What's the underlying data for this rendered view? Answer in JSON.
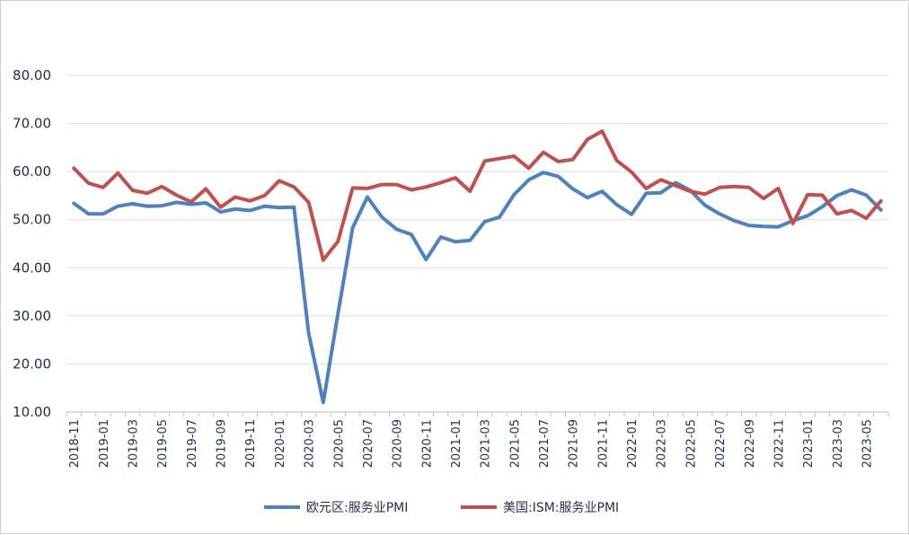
{
  "chart_data": {
    "type": "line",
    "ylim": [
      10,
      80
    ],
    "yticks": [
      "10.00",
      "20.00",
      "30.00",
      "40.00",
      "50.00",
      "60.00",
      "70.00",
      "80.00"
    ],
    "grid": true,
    "legend_position": "bottom",
    "x": [
      "2018-11",
      "2018-12",
      "2019-01",
      "2019-02",
      "2019-03",
      "2019-04",
      "2019-05",
      "2019-06",
      "2019-07",
      "2019-08",
      "2019-09",
      "2019-10",
      "2019-11",
      "2019-12",
      "2020-01",
      "2020-02",
      "2020-03",
      "2020-04",
      "2020-05",
      "2020-06",
      "2020-07",
      "2020-08",
      "2020-09",
      "2020-10",
      "2020-11",
      "2020-12",
      "2021-01",
      "2021-02",
      "2021-03",
      "2021-04",
      "2021-05",
      "2021-06",
      "2021-07",
      "2021-08",
      "2021-09",
      "2021-10",
      "2021-11",
      "2021-12",
      "2022-01",
      "2022-02",
      "2022-03",
      "2022-04",
      "2022-05",
      "2022-06",
      "2022-07",
      "2022-08",
      "2022-09",
      "2022-10",
      "2022-11",
      "2022-12",
      "2023-01",
      "2023-02",
      "2023-03",
      "2023-04",
      "2023-05",
      "2023-06"
    ],
    "xtick_labels": [
      "2018-11",
      "2019-01",
      "2019-03",
      "2019-05",
      "2019-07",
      "2019-09",
      "2019-11",
      "2020-01",
      "2020-03",
      "2020-05",
      "2020-07",
      "2020-09",
      "2020-11",
      "2021-01",
      "2021-03",
      "2021-05",
      "2021-07",
      "2021-09",
      "2021-11",
      "2022-01",
      "2022-03",
      "2022-05",
      "2022-07",
      "2022-09",
      "2022-11",
      "2023-01",
      "2023-03",
      "2023-05"
    ],
    "series": [
      {
        "name": "欧元区:服务业PMI",
        "color": "#4F81BD",
        "values": [
          53.4,
          51.2,
          51.2,
          52.8,
          53.3,
          52.8,
          52.9,
          53.6,
          53.2,
          53.5,
          51.6,
          52.2,
          51.9,
          52.8,
          52.5,
          52.6,
          26.4,
          12.0,
          30.5,
          48.3,
          54.7,
          50.5,
          48.0,
          46.9,
          41.7,
          46.4,
          45.4,
          45.7,
          49.6,
          50.5,
          55.2,
          58.3,
          59.8,
          59.0,
          56.4,
          54.6,
          55.9,
          53.1,
          51.1,
          55.5,
          55.6,
          57.7,
          56.1,
          53.0,
          51.2,
          49.8,
          48.8,
          48.6,
          48.5,
          49.8,
          50.8,
          52.7,
          55.0,
          56.2,
          55.1,
          52.0
        ]
      },
      {
        "name": "美国:ISM:服务业PMI",
        "color": "#C0504D",
        "values": [
          60.7,
          57.6,
          56.7,
          59.7,
          56.1,
          55.5,
          56.9,
          55.1,
          53.7,
          56.4,
          52.6,
          54.7,
          53.9,
          55.0,
          58.1,
          56.8,
          53.6,
          41.6,
          45.5,
          56.6,
          56.5,
          57.3,
          57.3,
          56.2,
          56.8,
          57.7,
          58.7,
          55.9,
          62.2,
          62.7,
          63.2,
          60.7,
          64.0,
          62.1,
          62.5,
          66.7,
          68.4,
          62.3,
          59.9,
          56.5,
          58.3,
          57.1,
          55.9,
          55.3,
          56.7,
          56.9,
          56.7,
          54.4,
          56.5,
          49.2,
          55.2,
          55.1,
          51.2,
          51.9,
          50.3,
          53.9
        ]
      }
    ]
  }
}
